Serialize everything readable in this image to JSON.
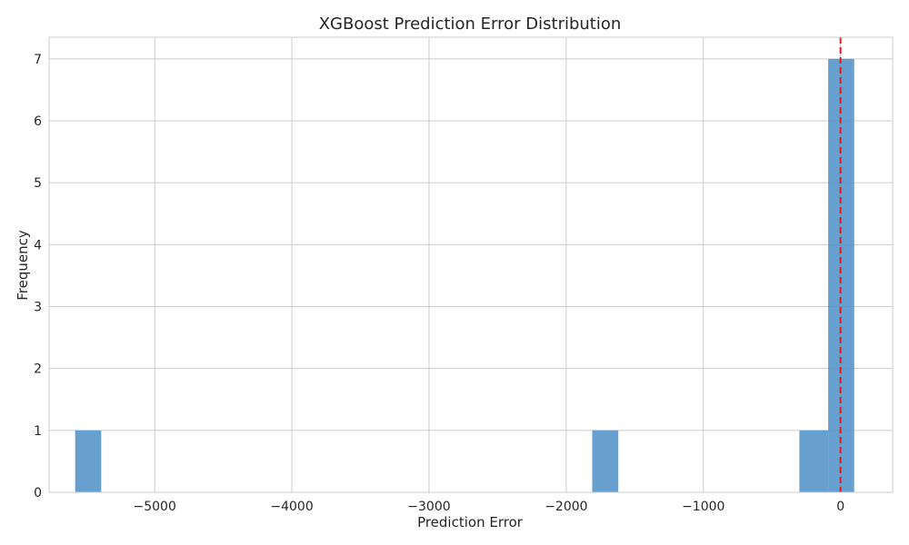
{
  "chart_data": {
    "type": "bar",
    "title": "XGBoost Prediction Error Distribution",
    "xlabel": "Prediction Error",
    "ylabel": "Frequency",
    "xlim": [
      -5770,
      380
    ],
    "ylim": [
      0,
      7.35
    ],
    "xticks": [
      -5000,
      -4000,
      -3000,
      -2000,
      -1000,
      0
    ],
    "xtick_labels": [
      "−5000",
      "−4000",
      "−3000",
      "−2000",
      "−1000",
      "0"
    ],
    "yticks": [
      0,
      1,
      2,
      3,
      4,
      5,
      6,
      7
    ],
    "ytick_labels": [
      "0",
      "1",
      "2",
      "3",
      "4",
      "5",
      "6",
      "7"
    ],
    "bins": [
      {
        "x0": -5580,
        "x1": -5390,
        "count": 1
      },
      {
        "x0": -1810,
        "x1": -1620,
        "count": 1
      },
      {
        "x0": -300,
        "x1": -90,
        "count": 1
      },
      {
        "x0": -90,
        "x1": 100,
        "count": 7
      }
    ],
    "reference_line": {
      "x": 0,
      "style": "dashed",
      "color": "#e41a1c"
    },
    "bar_color": "#4c8fc7",
    "bar_opacity": 0.85,
    "grid": true,
    "legend": "none"
  }
}
